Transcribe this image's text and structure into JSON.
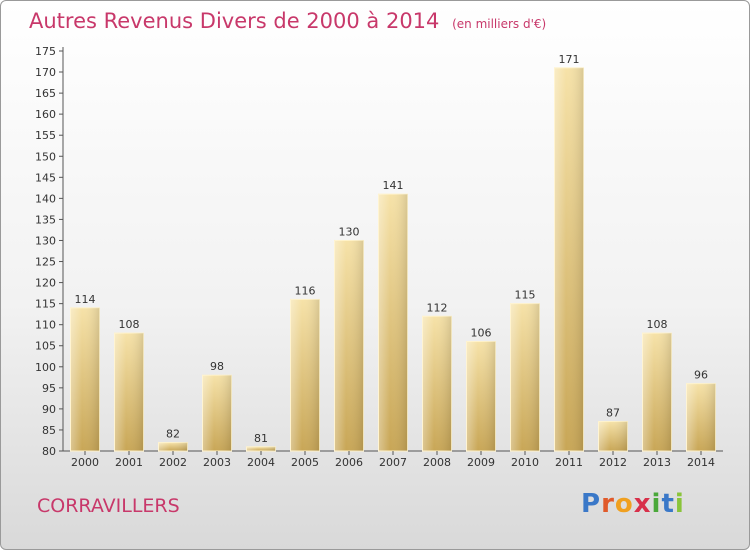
{
  "chart_data": {
    "type": "bar",
    "title": "Autres Revenus Divers de 2000 à 2014",
    "subtitle": "(en milliers d'€)",
    "categories": [
      "2000",
      "2001",
      "2002",
      "2003",
      "2004",
      "2005",
      "2006",
      "2007",
      "2008",
      "2009",
      "2010",
      "2011",
      "2012",
      "2013",
      "2014"
    ],
    "values": [
      114,
      108,
      82,
      98,
      81,
      116,
      130,
      141,
      112,
      106,
      115,
      171,
      87,
      108,
      96
    ],
    "ylim": [
      80,
      175
    ],
    "yticks": [
      80,
      85,
      90,
      95,
      100,
      105,
      110,
      115,
      120,
      125,
      130,
      135,
      140,
      145,
      150,
      155,
      160,
      165,
      170,
      175
    ],
    "grid": false,
    "colors": {
      "bar": "#e8c97a",
      "bar_light": "#f6e2a8",
      "bar_dark": "#c8a656",
      "title": "#c8386a"
    }
  },
  "commune": "CORRAVILLERS",
  "logo": {
    "letters": [
      "P",
      "r",
      "o",
      "x",
      "i",
      "t",
      "i"
    ]
  }
}
